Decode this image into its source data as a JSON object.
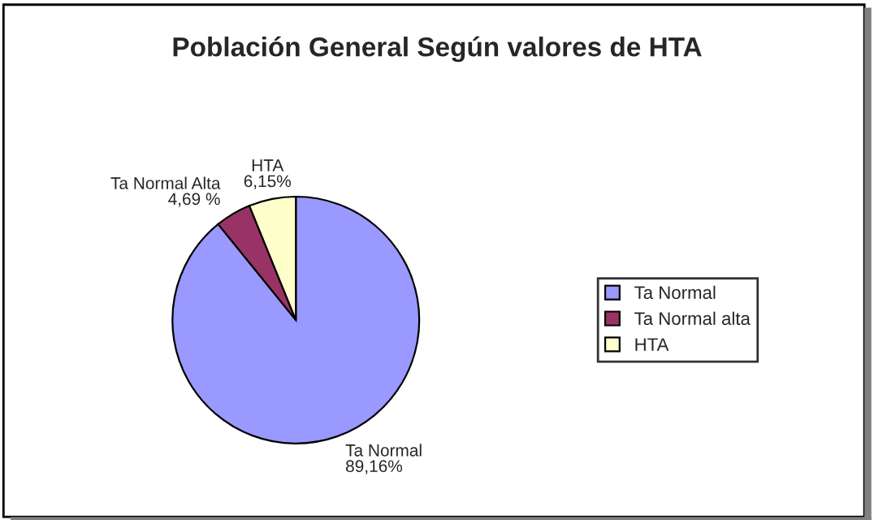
{
  "chart_data": {
    "type": "pie",
    "title": "Población General Según valores de HTA",
    "categories": [
      "Ta Normal",
      "Ta Normal alta",
      "HTA"
    ],
    "values": [
      89.16,
      4.69,
      6.15
    ],
    "colors": [
      "#9999ff",
      "#993366",
      "#ffffcc"
    ],
    "value_labels": [
      "Ta Normal\n89,16%",
      "Ta Normal Alta\n4,69 %",
      "HTA\n6,15%"
    ],
    "legend": "right"
  }
}
